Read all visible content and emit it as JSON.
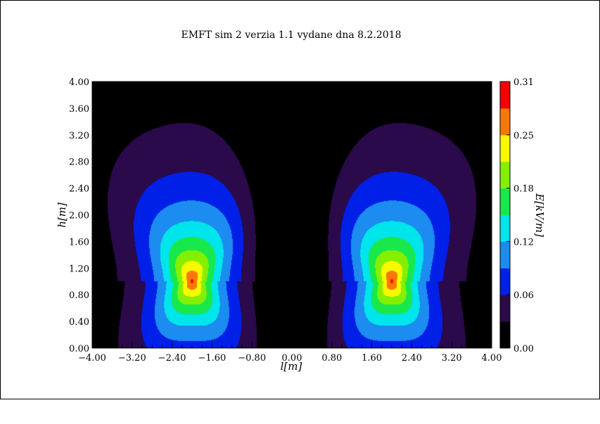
{
  "chart_data": {
    "type": "heatmap",
    "title": "EMFT sim 2 verzia 1.1 vydane dna 8.2.2018",
    "xlabel": "l[m]",
    "ylabel": "h[m]",
    "colorbar_label": "E[kV/m]",
    "xlim": [
      -4.0,
      4.0
    ],
    "ylim": [
      0.0,
      4.0
    ],
    "x_ticks": [
      "-4.00",
      "-3.20",
      "-2.40",
      "-1.60",
      "-0.80",
      "0.00",
      "0.80",
      "1.60",
      "2.40",
      "3.20",
      "4.00"
    ],
    "y_ticks": [
      "0.00",
      "0.40",
      "0.80",
      "1.20",
      "1.60",
      "2.00",
      "2.40",
      "2.80",
      "3.20",
      "3.60",
      "4.00"
    ],
    "colorbar_range": [
      0.0,
      0.31
    ],
    "colorbar_ticks": [
      "0.00",
      "0.06",
      "0.12",
      "0.18",
      "0.25",
      "0.31"
    ],
    "sources": [
      {
        "x": -2.0,
        "h": 1.0
      },
      {
        "x": 2.0,
        "h": 1.0
      }
    ],
    "peak_value": 0.28,
    "level_colors": [
      "#000000",
      "#2a0a4a",
      "#0020e8",
      "#1c8cf0",
      "#00e4ec",
      "#18e84c",
      "#84f000",
      "#f8f800",
      "#f87808",
      "#f80000"
    ]
  }
}
